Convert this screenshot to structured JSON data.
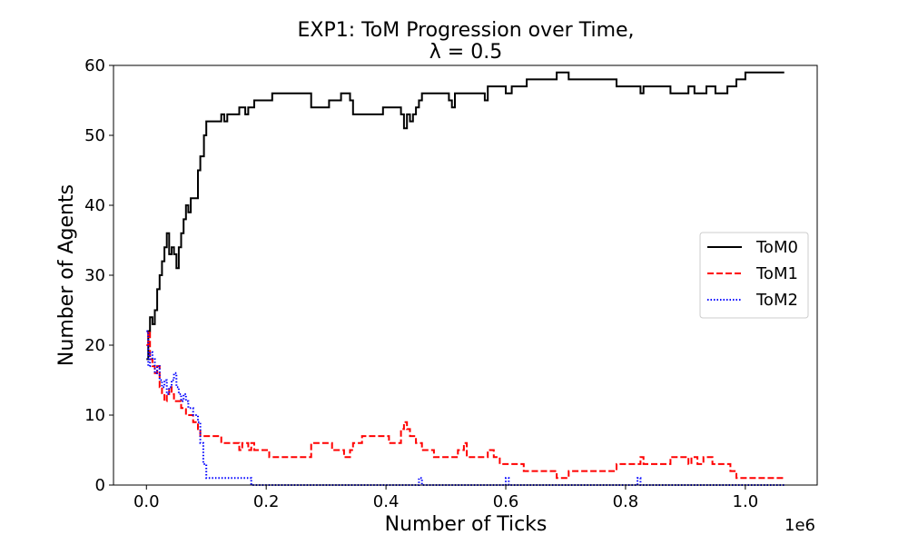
{
  "chart_data": {
    "type": "line",
    "title": "EXP1: ToM Progression over Time,",
    "subtitle": "λ = 0.5",
    "xlabel": "Number of Ticks",
    "ylabel": "Number of Agents",
    "x_offset_label": "1e6",
    "xlim": [
      -0.055,
      1.12
    ],
    "ylim": [
      0,
      60
    ],
    "xticks": [
      0.0,
      0.2,
      0.4,
      0.6,
      0.8,
      1.0
    ],
    "xtick_labels": [
      "0.0",
      "0.2",
      "0.4",
      "0.6",
      "0.8",
      "1.0"
    ],
    "yticks": [
      0,
      10,
      20,
      30,
      40,
      50,
      60
    ],
    "ytick_labels": [
      "0",
      "10",
      "20",
      "30",
      "40",
      "50",
      "60"
    ],
    "grid": false,
    "legend_position": "center-right",
    "series": [
      {
        "name": "ToM0",
        "color": "#000000",
        "style": "solid",
        "points": [
          [
            0.0,
            18
          ],
          [
            0.003,
            22
          ],
          [
            0.006,
            24
          ],
          [
            0.01,
            23
          ],
          [
            0.014,
            25
          ],
          [
            0.018,
            28
          ],
          [
            0.022,
            30
          ],
          [
            0.026,
            32
          ],
          [
            0.03,
            34
          ],
          [
            0.034,
            36
          ],
          [
            0.038,
            33
          ],
          [
            0.042,
            34
          ],
          [
            0.046,
            33
          ],
          [
            0.05,
            31
          ],
          [
            0.054,
            34
          ],
          [
            0.058,
            36
          ],
          [
            0.062,
            38
          ],
          [
            0.066,
            40
          ],
          [
            0.07,
            39
          ],
          [
            0.074,
            41
          ],
          [
            0.082,
            41
          ],
          [
            0.086,
            45
          ],
          [
            0.09,
            47
          ],
          [
            0.096,
            50
          ],
          [
            0.1,
            52
          ],
          [
            0.12,
            52
          ],
          [
            0.125,
            53
          ],
          [
            0.13,
            52
          ],
          [
            0.135,
            53
          ],
          [
            0.15,
            53
          ],
          [
            0.155,
            54
          ],
          [
            0.165,
            53
          ],
          [
            0.17,
            54
          ],
          [
            0.18,
            55
          ],
          [
            0.2,
            55
          ],
          [
            0.21,
            56
          ],
          [
            0.27,
            56
          ],
          [
            0.275,
            54
          ],
          [
            0.3,
            54
          ],
          [
            0.305,
            55
          ],
          [
            0.32,
            55
          ],
          [
            0.325,
            56
          ],
          [
            0.335,
            56
          ],
          [
            0.34,
            55
          ],
          [
            0.345,
            53
          ],
          [
            0.39,
            53
          ],
          [
            0.395,
            54
          ],
          [
            0.42,
            54
          ],
          [
            0.425,
            53
          ],
          [
            0.43,
            51
          ],
          [
            0.435,
            53
          ],
          [
            0.44,
            52
          ],
          [
            0.445,
            53
          ],
          [
            0.45,
            54
          ],
          [
            0.455,
            55
          ],
          [
            0.46,
            56
          ],
          [
            0.5,
            56
          ],
          [
            0.505,
            55
          ],
          [
            0.51,
            54
          ],
          [
            0.515,
            56
          ],
          [
            0.56,
            56
          ],
          [
            0.565,
            55
          ],
          [
            0.57,
            57
          ],
          [
            0.59,
            57
          ],
          [
            0.6,
            56
          ],
          [
            0.61,
            57
          ],
          [
            0.63,
            57
          ],
          [
            0.635,
            58
          ],
          [
            0.68,
            58
          ],
          [
            0.685,
            59
          ],
          [
            0.7,
            59
          ],
          [
            0.705,
            58
          ],
          [
            0.78,
            58
          ],
          [
            0.785,
            57
          ],
          [
            0.82,
            57
          ],
          [
            0.825,
            56
          ],
          [
            0.83,
            57
          ],
          [
            0.87,
            57
          ],
          [
            0.875,
            56
          ],
          [
            0.9,
            56
          ],
          [
            0.905,
            57
          ],
          [
            0.91,
            57
          ],
          [
            0.915,
            56
          ],
          [
            0.93,
            56
          ],
          [
            0.935,
            57
          ],
          [
            0.945,
            57
          ],
          [
            0.95,
            56
          ],
          [
            0.965,
            56
          ],
          [
            0.97,
            57
          ],
          [
            0.98,
            57
          ],
          [
            0.985,
            58
          ],
          [
            0.995,
            58
          ],
          [
            1.0,
            59
          ],
          [
            1.065,
            59
          ]
        ]
      },
      {
        "name": "ToM1",
        "color": "#ff0000",
        "style": "dashed",
        "points": [
          [
            0.0,
            20
          ],
          [
            0.003,
            22
          ],
          [
            0.006,
            18
          ],
          [
            0.01,
            17
          ],
          [
            0.014,
            16
          ],
          [
            0.018,
            17
          ],
          [
            0.022,
            14
          ],
          [
            0.026,
            13
          ],
          [
            0.03,
            12
          ],
          [
            0.034,
            13
          ],
          [
            0.038,
            14
          ],
          [
            0.042,
            13
          ],
          [
            0.046,
            12
          ],
          [
            0.05,
            12
          ],
          [
            0.054,
            12
          ],
          [
            0.058,
            11
          ],
          [
            0.062,
            11
          ],
          [
            0.066,
            10
          ],
          [
            0.07,
            10
          ],
          [
            0.078,
            9
          ],
          [
            0.086,
            8
          ],
          [
            0.09,
            7
          ],
          [
            0.12,
            7
          ],
          [
            0.125,
            6
          ],
          [
            0.15,
            6
          ],
          [
            0.155,
            5
          ],
          [
            0.16,
            6
          ],
          [
            0.17,
            5
          ],
          [
            0.175,
            6
          ],
          [
            0.18,
            5
          ],
          [
            0.2,
            5
          ],
          [
            0.205,
            4
          ],
          [
            0.27,
            4
          ],
          [
            0.275,
            6
          ],
          [
            0.305,
            6
          ],
          [
            0.31,
            5
          ],
          [
            0.33,
            4
          ],
          [
            0.34,
            5
          ],
          [
            0.345,
            6
          ],
          [
            0.36,
            7
          ],
          [
            0.4,
            7
          ],
          [
            0.405,
            6
          ],
          [
            0.42,
            6
          ],
          [
            0.425,
            8
          ],
          [
            0.43,
            9
          ],
          [
            0.435,
            8
          ],
          [
            0.44,
            7
          ],
          [
            0.45,
            6
          ],
          [
            0.46,
            5
          ],
          [
            0.475,
            5
          ],
          [
            0.48,
            4
          ],
          [
            0.5,
            4
          ],
          [
            0.52,
            5
          ],
          [
            0.53,
            6
          ],
          [
            0.535,
            4
          ],
          [
            0.56,
            4
          ],
          [
            0.57,
            5
          ],
          [
            0.58,
            4
          ],
          [
            0.59,
            3
          ],
          [
            0.62,
            3
          ],
          [
            0.63,
            2
          ],
          [
            0.68,
            2
          ],
          [
            0.685,
            1
          ],
          [
            0.7,
            1
          ],
          [
            0.705,
            2
          ],
          [
            0.78,
            2
          ],
          [
            0.785,
            3
          ],
          [
            0.82,
            3
          ],
          [
            0.825,
            4
          ],
          [
            0.83,
            3
          ],
          [
            0.87,
            3
          ],
          [
            0.875,
            4
          ],
          [
            0.9,
            4
          ],
          [
            0.905,
            3
          ],
          [
            0.91,
            4
          ],
          [
            0.915,
            4
          ],
          [
            0.92,
            3
          ],
          [
            0.93,
            4
          ],
          [
            0.94,
            4
          ],
          [
            0.945,
            3
          ],
          [
            0.97,
            3
          ],
          [
            0.975,
            2
          ],
          [
            0.98,
            2
          ],
          [
            0.985,
            1
          ],
          [
            1.065,
            1
          ]
        ]
      },
      {
        "name": "ToM2",
        "color": "#0000ff",
        "style": "dotted",
        "points": [
          [
            0.0,
            22
          ],
          [
            0.003,
            17
          ],
          [
            0.006,
            19
          ],
          [
            0.01,
            18
          ],
          [
            0.014,
            16
          ],
          [
            0.018,
            17
          ],
          [
            0.022,
            15
          ],
          [
            0.026,
            14
          ],
          [
            0.03,
            15
          ],
          [
            0.034,
            13
          ],
          [
            0.038,
            14
          ],
          [
            0.042,
            15
          ],
          [
            0.046,
            16
          ],
          [
            0.05,
            14
          ],
          [
            0.054,
            13
          ],
          [
            0.058,
            12
          ],
          [
            0.062,
            13
          ],
          [
            0.066,
            12
          ],
          [
            0.07,
            11
          ],
          [
            0.078,
            10
          ],
          [
            0.086,
            9
          ],
          [
            0.09,
            6
          ],
          [
            0.095,
            3
          ],
          [
            0.1,
            1
          ],
          [
            0.17,
            1
          ],
          [
            0.175,
            0
          ],
          [
            0.45,
            0
          ],
          [
            0.455,
            1
          ],
          [
            0.46,
            0
          ],
          [
            0.59,
            0
          ],
          [
            0.6,
            1
          ],
          [
            0.605,
            0
          ],
          [
            0.815,
            0
          ],
          [
            0.82,
            1
          ],
          [
            0.825,
            0
          ],
          [
            1.065,
            0
          ]
        ]
      }
    ]
  }
}
